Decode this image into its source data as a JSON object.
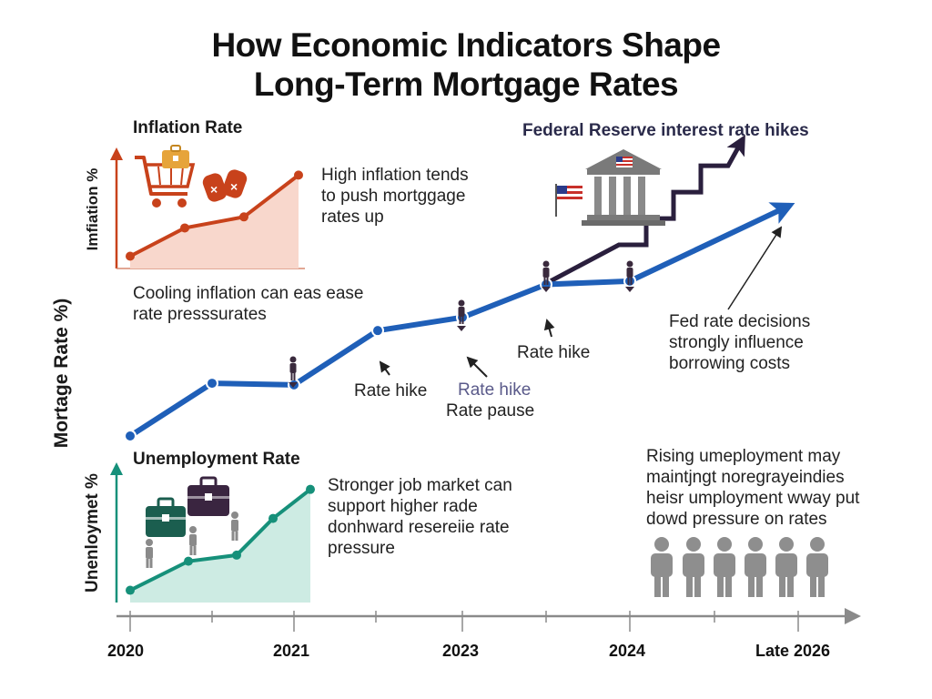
{
  "title": {
    "line1": "How Economic Indicators Shape",
    "line2": "Long-Term Mortgage Rates"
  },
  "inflation_panel": {
    "title": "Inflation Rate",
    "ylabel": "Imfiation %",
    "note_lines": [
      "High inflation tends",
      "to push mortggage",
      "rates up"
    ],
    "title_color": "#c8562b",
    "line_color": "#c8421b",
    "fill_color": "#f8d7cc"
  },
  "cooling_note": [
    "Cooling inflation can eas ease",
    "rate presssurates"
  ],
  "fed_title": "Federal Reserve interest rate hikes",
  "fed_note": [
    "Fed rate decisions",
    "strongly influence",
    "borrowing costs"
  ],
  "unemployment_panel": {
    "title": "Unemployment Rate",
    "ylabel": "Unenloymet %",
    "note_lines": [
      "Stronger job market can",
      "support higher rade",
      "donhward resereiie rate",
      "pressure"
    ],
    "title_color": "#1e6b55",
    "line_color": "#16907a",
    "fill_color": "#cdebe3"
  },
  "rising_note": [
    "Rising umeployment may",
    "maintjngt noregrayeindies",
    "heisr umployment wway put",
    "dowd pressure on rates"
  ],
  "annotations": {
    "rate_hike_1": "Rate hike",
    "rate_hike_2": "Rate hike",
    "rate_pause": "Rate pause",
    "rate_hike_3": "Rate hike"
  },
  "icons": {
    "cart": "shopping-cart-icon",
    "bank": "bank-building-icon",
    "flag": "us-flag-icon",
    "briefcase": "briefcase-icon",
    "person": "person-icon"
  },
  "colors": {
    "mortgage_line": "#1f5fb8",
    "fed_line": "#2a1f3d",
    "axis": "#8a8a8a"
  },
  "chart_data": [
    {
      "type": "line",
      "title": "How Economic Indicators Shape Long-Term Mortgage Rates",
      "ylabel": "Mortage Rate %)",
      "xlabel": "",
      "x_ticks": [
        "2020",
        "2021",
        "2023",
        "2024",
        "Late 2026"
      ],
      "series": [
        {
          "values": [
            3.0,
            4.6,
            4.55,
            6.2,
            6.6,
            7.6,
            7.7,
            10.0
          ]
        }
      ],
      "legend": "none",
      "grid": false
    },
    {
      "type": "line",
      "title": "Federal Reserve interest rate hikes",
      "series": [
        {
          "values": [
            7.6,
            8.8,
            8.8,
            9.6,
            9.6,
            10.4,
            10.4,
            11.2,
            11.2,
            12.0
          ]
        }
      ]
    },
    {
      "type": "area",
      "title": "Inflation Rate",
      "ylabel": "Imfiation %",
      "series": [
        {
          "values": [
            1.0,
            3.3,
            4.2,
            7.6
          ]
        }
      ]
    },
    {
      "type": "area",
      "title": "Unemployment Rate",
      "ylabel": "Unenloymet %",
      "series": [
        {
          "values": [
            0.8,
            2.7,
            3.1,
            5.5,
            7.4
          ]
        }
      ]
    }
  ]
}
